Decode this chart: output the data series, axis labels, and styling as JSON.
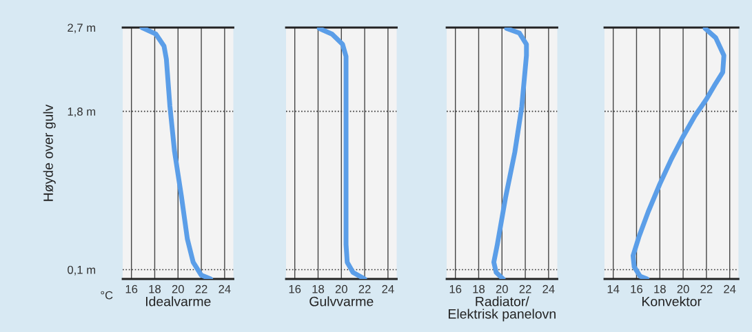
{
  "chart_data": [
    {
      "type": "line",
      "xlabel": "Idealvarme",
      "ylabel": "Høyde over gulv",
      "annotations": [
        "°C"
      ],
      "xlim": [
        15.25,
        24.75
      ],
      "xticks": [
        16,
        18,
        20,
        22,
        24
      ],
      "ylim": [
        0,
        2.7
      ],
      "yticks": [
        {
          "value": 0.1,
          "label": "0,1 m"
        },
        {
          "value": 1.8,
          "label": "1,8 m"
        },
        {
          "value": 2.7,
          "label": "2,7 m"
        }
      ],
      "grid": "x",
      "line_style": "solid",
      "marker": "none",
      "ref_lines": [
        {
          "axis": "y",
          "value": 0.1,
          "line_style": "dotted",
          "color": "#333333"
        },
        {
          "axis": "y",
          "value": 1.8,
          "line_style": "dotted",
          "color": "#333333"
        }
      ],
      "series": [
        {
          "color": "#5b9ee8",
          "x": [
            16.9,
            18.1,
            18.8,
            19.0,
            19.3,
            19.7,
            20.3,
            20.8,
            21.3,
            22.0,
            22.8
          ],
          "values": [
            2.7,
            2.63,
            2.5,
            2.36,
            1.86,
            1.37,
            0.88,
            0.43,
            0.18,
            0.04,
            0.0
          ]
        }
      ]
    },
    {
      "type": "line",
      "xlabel": "Gulvvarme",
      "xlim": [
        15.25,
        24.75
      ],
      "xticks": [
        16,
        18,
        20,
        22,
        24
      ],
      "ylim": [
        0,
        2.7
      ],
      "tick_labels": "x",
      "grid": "x",
      "line_style": "solid",
      "marker": "none",
      "ref_lines": [
        {
          "axis": "y",
          "value": 0.1,
          "line_style": "dotted",
          "color": "#333333"
        },
        {
          "axis": "y",
          "value": 1.8,
          "line_style": "dotted",
          "color": "#333333"
        }
      ],
      "series": [
        {
          "color": "#5b9ee8",
          "x": [
            18.1,
            19.2,
            20.1,
            20.4,
            20.4,
            20.4,
            20.4,
            20.5,
            21.0,
            22.0
          ],
          "values": [
            2.69,
            2.63,
            2.52,
            2.39,
            2.1,
            1.11,
            0.37,
            0.18,
            0.07,
            0.0
          ]
        }
      ]
    },
    {
      "type": "line",
      "xlabel": "Radiator/\nElektrisk panelovn",
      "xlim": [
        15.25,
        24.75
      ],
      "xticks": [
        16,
        18,
        20,
        22,
        24
      ],
      "ylim": [
        0,
        2.7
      ],
      "tick_labels": "x",
      "grid": "x",
      "line_style": "solid",
      "marker": "none",
      "ref_lines": [
        {
          "axis": "y",
          "value": 0.1,
          "line_style": "dotted",
          "color": "#333333"
        },
        {
          "axis": "y",
          "value": 1.8,
          "line_style": "dotted",
          "color": "#333333"
        }
      ],
      "series": [
        {
          "color": "#5b9ee8",
          "x": [
            20.4,
            21.5,
            22.1,
            22.1,
            21.7,
            21.1,
            20.3,
            19.6,
            19.3,
            19.5,
            20.1
          ],
          "values": [
            2.69,
            2.64,
            2.52,
            2.4,
            1.85,
            1.36,
            0.87,
            0.37,
            0.18,
            0.07,
            0.0
          ]
        }
      ]
    },
    {
      "type": "line",
      "xlabel": "Konvektor",
      "xlim": [
        13.25,
        24.75
      ],
      "xticks": [
        14,
        16,
        18,
        20,
        22,
        24
      ],
      "ylim": [
        0,
        2.7
      ],
      "tick_labels": "x",
      "grid": "x",
      "line_style": "solid",
      "marker": "none",
      "ref_lines": [
        {
          "axis": "y",
          "value": 0.1,
          "line_style": "dotted",
          "color": "#333333"
        },
        {
          "axis": "y",
          "value": 1.8,
          "line_style": "dotted",
          "color": "#333333"
        }
      ],
      "series": [
        {
          "color": "#5b9ee8",
          "x": [
            21.9,
            22.8,
            23.5,
            23.4,
            22.8,
            22.0,
            21.0,
            20.0,
            19.0,
            18.0,
            17.0,
            16.2,
            15.7,
            15.8,
            16.3,
            16.9
          ],
          "values": [
            2.69,
            2.59,
            2.4,
            2.22,
            2.1,
            1.93,
            1.75,
            1.53,
            1.29,
            1.02,
            0.72,
            0.45,
            0.25,
            0.13,
            0.03,
            0.0
          ]
        }
      ]
    }
  ]
}
